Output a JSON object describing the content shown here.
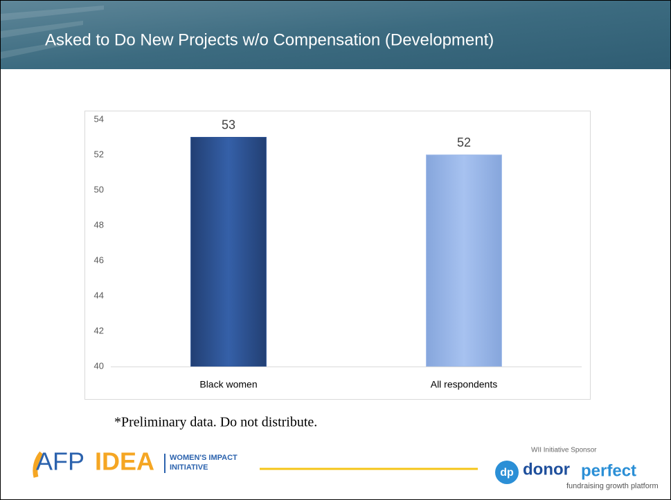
{
  "header": {
    "title": "Asked to Do New Projects w/o Compensation (Development)"
  },
  "chart_data": {
    "type": "bar",
    "categories": [
      "Black women",
      "All respondents"
    ],
    "values": [
      53,
      52
    ],
    "colors": [
      "#2f5597",
      "#9db9e9"
    ],
    "ylim": [
      40,
      54
    ],
    "yticks": [
      40,
      42,
      44,
      46,
      48,
      50,
      52,
      54
    ],
    "grid": false
  },
  "footnote": "*Preliminary data. Do not distribute.",
  "logos": {
    "afp": "AFP",
    "idea": "IDEA",
    "wii_line1": "WOMEN'S IMPACT",
    "wii_line2": "INITIATIVE",
    "sponsor": "WII Initiative Sponsor",
    "dp": "dp",
    "donor": "donor",
    "perfect": "perfect",
    "tagline": "fundraising growth platform"
  }
}
